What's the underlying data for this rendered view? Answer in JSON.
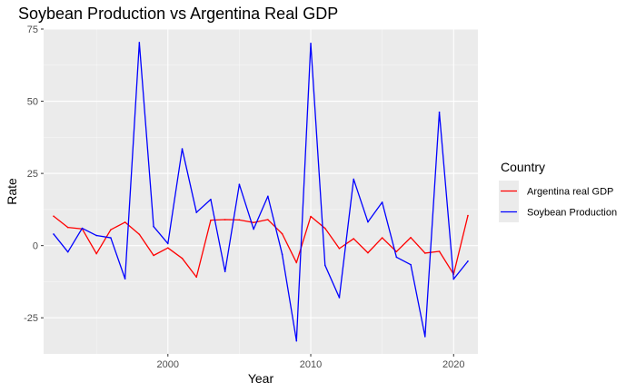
{
  "chart_data": {
    "type": "line",
    "title": "Soybean Production vs Argentina Real GDP",
    "xlabel": "Year",
    "ylabel": "Rate",
    "xlim": [
      1991.3,
      2021.7
    ],
    "ylim": [
      -37.5,
      75
    ],
    "x_ticks": [
      2000,
      2010,
      2020
    ],
    "y_ticks": [
      -25,
      0,
      25,
      50,
      75
    ],
    "y_tick_labels": [
      "-25",
      "0",
      "25",
      "50",
      "75"
    ],
    "grid": true,
    "legend": {
      "title": "Country",
      "position": "right"
    },
    "x": [
      1992,
      1993,
      1994,
      1995,
      1996,
      1997,
      1998,
      1999,
      2000,
      2001,
      2002,
      2003,
      2004,
      2005,
      2006,
      2007,
      2008,
      2009,
      2010,
      2011,
      2012,
      2013,
      2014,
      2015,
      2016,
      2017,
      2018,
      2019,
      2020,
      2021
    ],
    "series": [
      {
        "name": "Argentina real GDP",
        "color": "#ff0000",
        "values": [
          10.2,
          6.3,
          5.8,
          -2.8,
          5.5,
          8.1,
          3.9,
          -3.4,
          -0.8,
          -4.4,
          -10.9,
          8.8,
          9.0,
          8.9,
          8.0,
          9.0,
          4.1,
          -5.9,
          10.1,
          6.0,
          -1.0,
          2.4,
          -2.5,
          2.7,
          -2.1,
          2.8,
          -2.6,
          -2.0,
          -9.9,
          10.4
        ]
      },
      {
        "name": "Soybean Production",
        "color": "#0000ff",
        "values": [
          4.0,
          -2.2,
          6.0,
          3.5,
          2.7,
          -11.5,
          70.3,
          6.6,
          0.7,
          33.5,
          11.5,
          16.0,
          -9.0,
          21.2,
          5.7,
          17.1,
          -3.0,
          -33.0,
          70.0,
          -6.8,
          -18.0,
          23.0,
          8.2,
          15.0,
          -4.0,
          -6.6,
          -31.5,
          46.2,
          -11.6,
          -5.4
        ]
      }
    ]
  }
}
